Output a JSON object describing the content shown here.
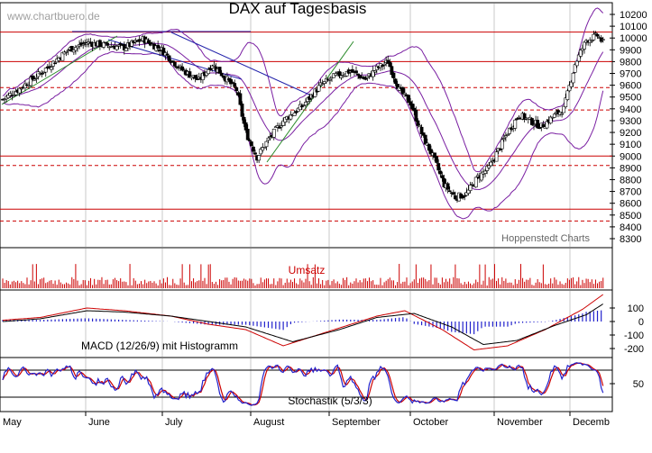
{
  "chart_data": [
    {
      "type": "candlestick",
      "title": "DAX auf Tagesbasis",
      "watermark": "www.chartbuero.de",
      "source_label": "Hoppenstedt Charts",
      "ylim": [
        8200,
        10250
      ],
      "y_ticks": [
        8300,
        8400,
        8500,
        8600,
        8700,
        8800,
        8900,
        9000,
        9100,
        9200,
        9300,
        9400,
        9500,
        9600,
        9700,
        9800,
        9900,
        10000,
        10100,
        10200
      ],
      "x_month_labels": [
        "May",
        "June",
        "July",
        "August",
        "September",
        "October",
        "November",
        "Decemb"
      ],
      "close_path": [
        [
          0,
          9480
        ],
        [
          8,
          9560
        ],
        [
          20,
          9700
        ],
        [
          35,
          9900
        ],
        [
          45,
          9960
        ],
        [
          55,
          9940
        ],
        [
          65,
          9920
        ],
        [
          75,
          9990
        ],
        [
          85,
          9900
        ],
        [
          95,
          9740
        ],
        [
          105,
          9640
        ],
        [
          112,
          9780
        ],
        [
          118,
          9680
        ],
        [
          125,
          9560
        ],
        [
          130,
          9200
        ],
        [
          136,
          8990
        ],
        [
          142,
          9140
        ],
        [
          150,
          9300
        ],
        [
          160,
          9420
        ],
        [
          170,
          9600
        ],
        [
          178,
          9680
        ],
        [
          186,
          9720
        ],
        [
          194,
          9650
        ],
        [
          200,
          9740
        ],
        [
          206,
          9800
        ],
        [
          212,
          9560
        ],
        [
          218,
          9450
        ],
        [
          225,
          9150
        ],
        [
          230,
          9000
        ],
        [
          236,
          8760
        ],
        [
          242,
          8650
        ],
        [
          248,
          8680
        ],
        [
          254,
          8820
        ],
        [
          260,
          8900
        ],
        [
          265,
          9050
        ],
        [
          270,
          9200
        ],
        [
          276,
          9350
        ],
        [
          282,
          9300
        ],
        [
          288,
          9250
        ],
        [
          294,
          9330
        ],
        [
          300,
          9400
        ],
        [
          306,
          9780
        ],
        [
          312,
          9980
        ],
        [
          318,
          10020
        ],
        [
          321,
          9960
        ]
      ],
      "resistance_lines": [
        10050,
        9800,
        9000,
        8550
      ],
      "dashed_lines": [
        9580,
        9390,
        8920,
        8450
      ]
    },
    {
      "type": "bar",
      "title": "Umsatz"
    },
    {
      "type": "line",
      "title": "MACD (12/26/9) mit Histogramm",
      "ylim": [
        -300,
        250
      ],
      "y_ticks": [
        100,
        0,
        -100,
        -200
      ],
      "series": [
        {
          "color": "#cc0000",
          "values": [
            [
              0,
              10
            ],
            [
              20,
              30
            ],
            [
              45,
              100
            ],
            [
              65,
              80
            ],
            [
              90,
              40
            ],
            [
              110,
              -20
            ],
            [
              130,
              -60
            ],
            [
              150,
              -180
            ],
            [
              175,
              -70
            ],
            [
              200,
              40
            ],
            [
              215,
              80
            ],
            [
              235,
              -60
            ],
            [
              252,
              -210
            ],
            [
              270,
              -180
            ],
            [
              290,
              -60
            ],
            [
              310,
              90
            ],
            [
              321,
              200
            ]
          ]
        },
        {
          "color": "#000000",
          "values": [
            [
              0,
              0
            ],
            [
              20,
              20
            ],
            [
              45,
              80
            ],
            [
              65,
              70
            ],
            [
              90,
              40
            ],
            [
              110,
              0
            ],
            [
              130,
              -40
            ],
            [
              155,
              -150
            ],
            [
              180,
              -60
            ],
            [
              200,
              30
            ],
            [
              220,
              60
            ],
            [
              240,
              -40
            ],
            [
              257,
              -170
            ],
            [
              275,
              -140
            ],
            [
              295,
              -30
            ],
            [
              312,
              50
            ],
            [
              321,
              130
            ]
          ]
        }
      ]
    },
    {
      "type": "line",
      "title": "Stochastik (5/3/3)",
      "y_ticks": [
        50
      ],
      "ylim": [
        0,
        100
      ]
    }
  ]
}
